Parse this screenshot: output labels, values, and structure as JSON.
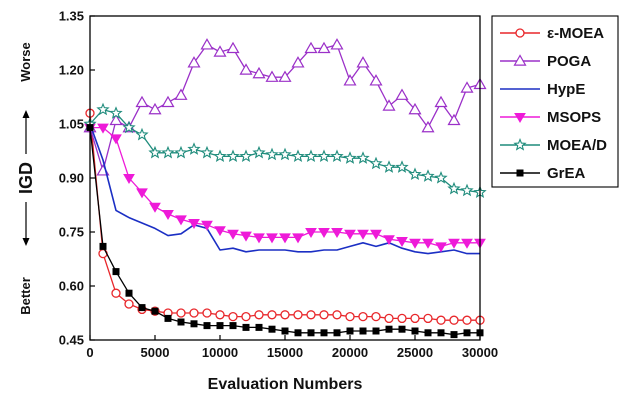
{
  "chart_data": {
    "type": "line",
    "xlabel": "Evaluation Numbers",
    "ylabel": {
      "main": "IGD",
      "better": "Better",
      "worse": "Worse"
    },
    "xlim": [
      0,
      30000
    ],
    "ylim": [
      0.45,
      1.35
    ],
    "xticks": [
      0,
      5000,
      10000,
      15000,
      20000,
      25000,
      30000
    ],
    "xtick_labels": [
      "0",
      "5000",
      "10000",
      "15000",
      "20000",
      "25000",
      "30000"
    ],
    "yticks": [
      0.45,
      0.6,
      0.75,
      0.9,
      1.05,
      1.2,
      1.35
    ],
    "ytick_labels": [
      "0.45",
      "0.60",
      "0.75",
      "0.90",
      "1.05",
      "1.20",
      "1.35"
    ],
    "legend_position": "right",
    "series": [
      {
        "name": "ε-MOEA",
        "color": "#e8262a",
        "marker": "circle-open",
        "x": [
          0,
          1000,
          2000,
          3000,
          4000,
          5000,
          6000,
          7000,
          8000,
          9000,
          10000,
          11000,
          12000,
          13000,
          14000,
          15000,
          16000,
          17000,
          18000,
          19000,
          20000,
          21000,
          22000,
          23000,
          24000,
          25000,
          26000,
          27000,
          28000,
          29000,
          30000
        ],
        "y": [
          1.08,
          0.69,
          0.58,
          0.55,
          0.535,
          0.53,
          0.525,
          0.525,
          0.525,
          0.525,
          0.52,
          0.515,
          0.515,
          0.52,
          0.52,
          0.52,
          0.52,
          0.52,
          0.52,
          0.52,
          0.515,
          0.515,
          0.515,
          0.51,
          0.51,
          0.51,
          0.51,
          0.505,
          0.505,
          0.505,
          0.505
        ]
      },
      {
        "name": "POGA",
        "color": "#9b30c8",
        "marker": "triangle-open",
        "x": [
          0,
          1000,
          2000,
          3000,
          4000,
          5000,
          6000,
          7000,
          8000,
          9000,
          10000,
          11000,
          12000,
          13000,
          14000,
          15000,
          16000,
          17000,
          18000,
          19000,
          20000,
          21000,
          22000,
          23000,
          24000,
          25000,
          26000,
          27000,
          28000,
          29000,
          30000
        ],
        "y": [
          1.04,
          0.92,
          1.06,
          1.04,
          1.11,
          1.09,
          1.11,
          1.13,
          1.22,
          1.27,
          1.25,
          1.26,
          1.2,
          1.19,
          1.18,
          1.18,
          1.22,
          1.26,
          1.26,
          1.27,
          1.17,
          1.22,
          1.17,
          1.1,
          1.13,
          1.09,
          1.04,
          1.11,
          1.06,
          1.15,
          1.16
        ]
      },
      {
        "name": "HypE",
        "color": "#1b2fc4",
        "marker": "none",
        "x": [
          0,
          1000,
          2000,
          3000,
          4000,
          5000,
          6000,
          7000,
          8000,
          9000,
          10000,
          11000,
          12000,
          13000,
          14000,
          15000,
          16000,
          17000,
          18000,
          19000,
          20000,
          21000,
          22000,
          23000,
          24000,
          25000,
          26000,
          27000,
          28000,
          29000,
          30000
        ],
        "y": [
          1.05,
          0.95,
          0.81,
          0.79,
          0.775,
          0.76,
          0.74,
          0.745,
          0.77,
          0.76,
          0.7,
          0.705,
          0.695,
          0.7,
          0.7,
          0.7,
          0.695,
          0.695,
          0.7,
          0.7,
          0.71,
          0.72,
          0.71,
          0.72,
          0.705,
          0.695,
          0.69,
          0.695,
          0.7,
          0.69,
          0.69
        ]
      },
      {
        "name": "MSOPS",
        "color": "#ee1ad8",
        "marker": "triangle-down-filled",
        "x": [
          0,
          1000,
          2000,
          3000,
          4000,
          5000,
          6000,
          7000,
          8000,
          9000,
          10000,
          11000,
          12000,
          13000,
          14000,
          15000,
          16000,
          17000,
          18000,
          19000,
          20000,
          21000,
          22000,
          23000,
          24000,
          25000,
          26000,
          27000,
          28000,
          29000,
          30000
        ],
        "y": [
          1.04,
          1.04,
          1.01,
          0.9,
          0.86,
          0.82,
          0.8,
          0.785,
          0.775,
          0.77,
          0.755,
          0.745,
          0.74,
          0.735,
          0.735,
          0.735,
          0.735,
          0.75,
          0.75,
          0.75,
          0.745,
          0.745,
          0.745,
          0.73,
          0.725,
          0.72,
          0.72,
          0.71,
          0.72,
          0.72,
          0.72
        ]
      },
      {
        "name": "MOEA/D",
        "color": "#1f8c7c",
        "marker": "star-open",
        "x": [
          0,
          1000,
          2000,
          3000,
          4000,
          5000,
          6000,
          7000,
          8000,
          9000,
          10000,
          11000,
          12000,
          13000,
          14000,
          15000,
          16000,
          17000,
          18000,
          19000,
          20000,
          21000,
          22000,
          23000,
          24000,
          25000,
          26000,
          27000,
          28000,
          29000,
          30000
        ],
        "y": [
          1.05,
          1.09,
          1.08,
          1.04,
          1.02,
          0.97,
          0.97,
          0.97,
          0.98,
          0.97,
          0.96,
          0.96,
          0.96,
          0.97,
          0.965,
          0.965,
          0.96,
          0.96,
          0.96,
          0.96,
          0.955,
          0.955,
          0.94,
          0.93,
          0.93,
          0.91,
          0.905,
          0.9,
          0.87,
          0.865,
          0.86
        ]
      },
      {
        "name": "GrEA",
        "color": "#000000",
        "marker": "square-filled",
        "x": [
          0,
          1000,
          2000,
          3000,
          4000,
          5000,
          6000,
          7000,
          8000,
          9000,
          10000,
          11000,
          12000,
          13000,
          14000,
          15000,
          16000,
          17000,
          18000,
          19000,
          20000,
          21000,
          22000,
          23000,
          24000,
          25000,
          26000,
          27000,
          28000,
          29000,
          30000
        ],
        "y": [
          1.04,
          0.71,
          0.64,
          0.58,
          0.54,
          0.53,
          0.51,
          0.5,
          0.495,
          0.49,
          0.49,
          0.49,
          0.485,
          0.485,
          0.48,
          0.475,
          0.47,
          0.47,
          0.47,
          0.47,
          0.475,
          0.475,
          0.475,
          0.48,
          0.48,
          0.475,
          0.47,
          0.47,
          0.465,
          0.47,
          0.47
        ]
      }
    ]
  }
}
